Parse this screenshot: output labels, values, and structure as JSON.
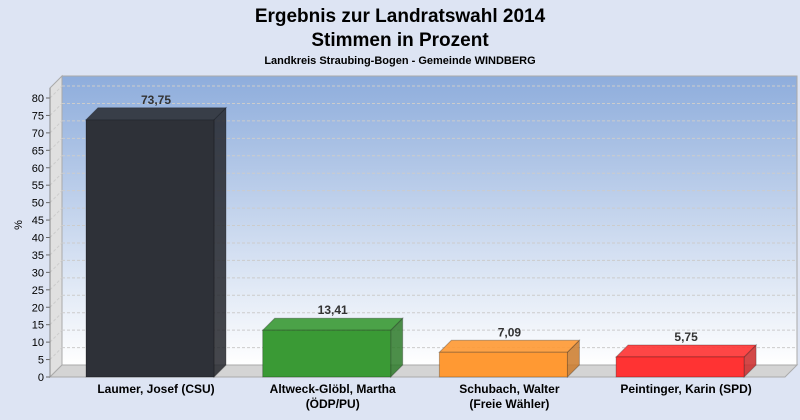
{
  "chart_data": {
    "type": "bar",
    "title": "Ergebnis zur Landratswahl 2014",
    "title2": "Stimmen in Prozent",
    "subtitle": "Landkreis Straubing-Bogen - Gemeinde WINDBERG",
    "ylabel": "%",
    "ylim": [
      0,
      80
    ],
    "yticks": [
      0,
      5,
      10,
      15,
      20,
      25,
      30,
      35,
      40,
      45,
      50,
      55,
      60,
      65,
      70,
      75,
      80
    ],
    "grid": true,
    "categories": [
      [
        "Laumer, Josef (CSU)"
      ],
      [
        "Altweck-Glöbl, Martha",
        "(ÖDP/PU)"
      ],
      [
        "Schubach, Walter",
        "(Freie Wähler)"
      ],
      [
        "Peintinger, Karin (SPD)"
      ]
    ],
    "values": [
      73.75,
      13.41,
      7.09,
      5.75
    ],
    "data_labels": [
      "73,75",
      "13,41",
      "7,09",
      "5,75"
    ],
    "colors": [
      "#2e3138",
      "#3a9a35",
      "#ff9933",
      "#ff3333"
    ]
  }
}
